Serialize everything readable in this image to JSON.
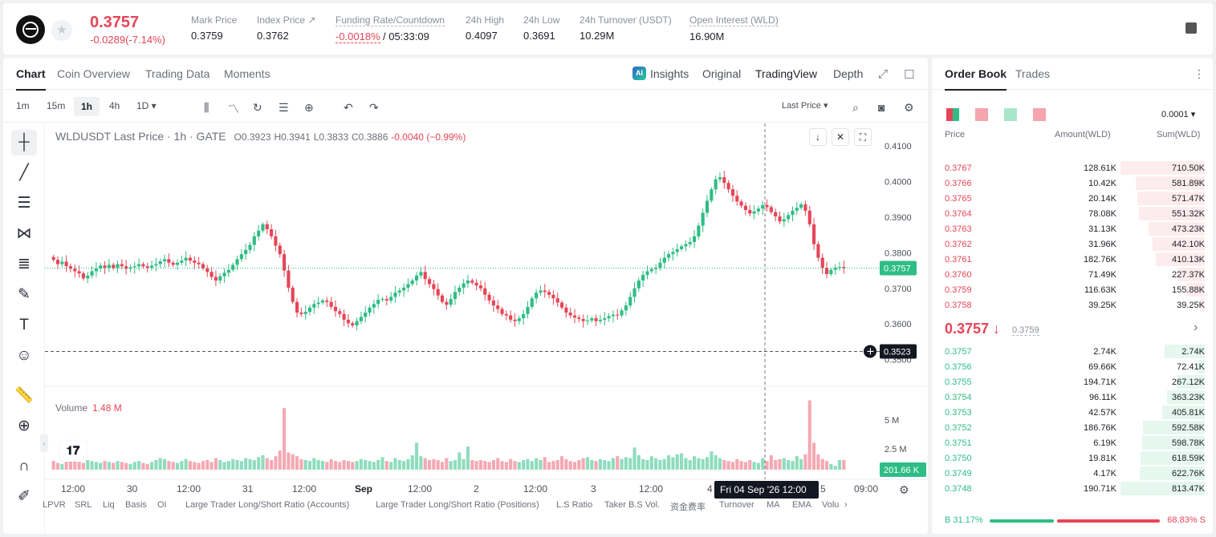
{
  "header": {
    "last_price": "0.3757",
    "change": "-0.0289(-7.14%)",
    "stats": [
      {
        "label": "Mark Price",
        "value": "0.3759"
      },
      {
        "label": "Index Price ↗",
        "value": "0.3762"
      },
      {
        "label": "Funding Rate/Countdown",
        "value_red": "-0.0018%",
        "value": "/ 05:33:09"
      },
      {
        "label": "24h High",
        "value": "0.4097"
      },
      {
        "label": "24h Low",
        "value": "0.3691"
      },
      {
        "label": "24h Turnover (USDT)",
        "value": "10.29M"
      },
      {
        "label": "Open Interest (WLD)",
        "value": "16.90M"
      }
    ]
  },
  "chart_tabs": [
    "Chart",
    "Coin Overview",
    "Trading Data",
    "Moments"
  ],
  "view_tabs": {
    "insights": "Insights",
    "ai": "AI",
    "original": "Original",
    "tradingview": "TradingView",
    "depth": "Depth"
  },
  "timeframes": [
    "1m",
    "15m",
    "1h",
    "4h",
    "1D ▾"
  ],
  "price_type": "Last Price ▾",
  "legend": {
    "symbol": "WLDUSDT Last Price · 1h · GATE",
    "o": "O0.3923",
    "h": "H0.3941",
    "l": "L0.3833",
    "c": "C0.3886",
    "chg": "-0.0040 (−0.99%)"
  },
  "volume_legend": {
    "label": "Volume",
    "value": "1.48 M"
  },
  "crosshair_date": "Fri 04 Sep '26   12:00",
  "indicators": [
    "LPVR",
    "SRL",
    "Liq",
    "Basis",
    "OI",
    "Large Trader Long/Short Ratio (Accounts)",
    "Large Trader Long/Short Ratio (Positions)",
    "L.S Ratio",
    "Taker B.S Vol.",
    "资金费率",
    "Turnover",
    "MA",
    "EMA",
    "Volu"
  ],
  "chart_data": {
    "type": "candlestick",
    "y_ticks": [
      "0.4100",
      "0.4000",
      "0.3900",
      "0.3800",
      "0.3700",
      "0.3600",
      "0.3500"
    ],
    "ylim": [
      0.3488,
      0.4118
    ],
    "current_price": "0.3757",
    "crosshair_price": "0.3523",
    "volume_ticks": [
      "5 M",
      "2.5 M"
    ],
    "volume_current": "201.66 K",
    "x_ticks": [
      "12:00",
      "30",
      "12:00",
      "31",
      "12:00",
      "Sep",
      "12:00",
      "2",
      "12:00",
      "3",
      "12:00",
      "4",
      "5",
      "09:00"
    ],
    "closes": [
      0.378,
      0.3768,
      0.3775,
      0.3762,
      0.3755,
      0.3748,
      0.3742,
      0.3728,
      0.3736,
      0.3748,
      0.3756,
      0.3764,
      0.3758,
      0.3766,
      0.3757,
      0.3768,
      0.3762,
      0.3755,
      0.3759,
      0.3762,
      0.3768,
      0.3762,
      0.3758,
      0.3764,
      0.3768,
      0.3776,
      0.3782,
      0.3772,
      0.3766,
      0.3772,
      0.3778,
      0.3786,
      0.3778,
      0.3772,
      0.3768,
      0.3756,
      0.3746,
      0.3732,
      0.3722,
      0.3734,
      0.3744,
      0.3752,
      0.3766,
      0.3782,
      0.3796,
      0.3808,
      0.3822,
      0.3846,
      0.3862,
      0.388,
      0.3866,
      0.3846,
      0.382,
      0.3796,
      0.375,
      0.3702,
      0.3662,
      0.3632,
      0.3628,
      0.3634,
      0.3646,
      0.3656,
      0.366,
      0.3666,
      0.3662,
      0.3648,
      0.3636,
      0.3628,
      0.3612,
      0.3602,
      0.3596,
      0.3608,
      0.362,
      0.3632,
      0.3646,
      0.3656,
      0.3668,
      0.367,
      0.3666,
      0.3676,
      0.3688,
      0.3694,
      0.3702,
      0.3712,
      0.3722,
      0.3736,
      0.3746,
      0.3726,
      0.3712,
      0.3698,
      0.368,
      0.3662,
      0.3654,
      0.367,
      0.369,
      0.3702,
      0.3714,
      0.3722,
      0.3716,
      0.3708,
      0.37,
      0.3682,
      0.3666,
      0.3652,
      0.3642,
      0.3628,
      0.3624,
      0.3612,
      0.3608,
      0.3616,
      0.3628,
      0.3648,
      0.3672,
      0.3688,
      0.3694,
      0.369,
      0.3682,
      0.3672,
      0.366,
      0.3646,
      0.3632,
      0.3624,
      0.3618,
      0.3614,
      0.3608,
      0.361,
      0.3616,
      0.3608,
      0.3612,
      0.3616,
      0.3622,
      0.3626,
      0.3624,
      0.3638,
      0.3652,
      0.3676,
      0.37,
      0.3722,
      0.3738,
      0.3748,
      0.3754,
      0.3758,
      0.3772,
      0.3786,
      0.3796,
      0.3802,
      0.381,
      0.3818,
      0.3824,
      0.383,
      0.3846,
      0.3876,
      0.3912,
      0.3946,
      0.3978,
      0.4006,
      0.4012,
      0.3996,
      0.3978,
      0.396,
      0.3944,
      0.3932,
      0.392,
      0.391,
      0.3916,
      0.3924,
      0.3934,
      0.3928,
      0.3914,
      0.3902,
      0.3888,
      0.3894,
      0.3906,
      0.3918,
      0.3926,
      0.3936,
      0.3918,
      0.388,
      0.3824,
      0.3786,
      0.3758,
      0.374,
      0.3752,
      0.3758,
      0.376,
      0.3757
    ],
    "volumes_mln": [
      0.9,
      0.7,
      0.6,
      0.8,
      1.1,
      0.9,
      0.8,
      0.7,
      1.0,
      0.9,
      0.8,
      0.7,
      0.9,
      0.8,
      0.7,
      0.9,
      0.8,
      0.7,
      0.6,
      0.8,
      0.9,
      0.7,
      0.6,
      0.8,
      1.0,
      1.2,
      1.1,
      0.9,
      0.8,
      0.7,
      0.9,
      1.1,
      0.9,
      0.8,
      0.7,
      0.9,
      1.0,
      0.8,
      1.2,
      1.0,
      0.8,
      0.9,
      1.1,
      1.0,
      0.9,
      1.2,
      1.1,
      1.0,
      1.3,
      1.5,
      1.2,
      1.0,
      1.4,
      2.0,
      6.4,
      1.8,
      1.6,
      1.4,
      1.1,
      1.0,
      0.9,
      1.2,
      1.0,
      0.9,
      0.8,
      1.1,
      0.9,
      0.8,
      1.0,
      0.9,
      0.8,
      0.9,
      1.1,
      1.0,
      0.9,
      0.8,
      1.0,
      1.3,
      0.9,
      0.8,
      1.2,
      1.0,
      0.9,
      1.1,
      1.5,
      2.8,
      1.4,
      1.2,
      1.0,
      1.1,
      1.0,
      0.8,
      1.2,
      0.9,
      1.0,
      1.8,
      1.1,
      2.4,
      1.0,
      0.9,
      1.0,
      0.9,
      0.8,
      1.0,
      1.2,
      0.9,
      0.8,
      1.1,
      0.9,
      0.8,
      1.0,
      1.1,
      0.9,
      1.2,
      1.0,
      1.3,
      0.8,
      0.9,
      1.0,
      1.4,
      1.1,
      0.9,
      0.8,
      1.0,
      1.2,
      1.3,
      1.0,
      0.9,
      1.1,
      1.0,
      0.9,
      1.2,
      1.4,
      1.1,
      1.3,
      1.2,
      2.3,
      1.5,
      1.1,
      1.0,
      1.4,
      1.2,
      1.0,
      1.1,
      1.5,
      1.3,
      1.6,
      1.7,
      1.2,
      1.0,
      1.4,
      1.2,
      1.1,
      1.3,
      1.9,
      1.5,
      1.2,
      1.0,
      0.9,
      0.8,
      1.1,
      0.9,
      0.8,
      1.0,
      0.8,
      0.7,
      1.2,
      0.9,
      1.5,
      1.0,
      1.1,
      1.2,
      1.0,
      0.9,
      1.4,
      1.1,
      1.6,
      7.2,
      2.8,
      1.6,
      1.1,
      0.9,
      0.6,
      0.4
    ]
  },
  "orderbook": {
    "tabs": [
      "Order Book",
      "Trades"
    ],
    "tick": "0.0001 ▾",
    "headers": {
      "price": "Price",
      "amount": "Amount(WLD)",
      "sum": "Sum(WLD)"
    },
    "asks": [
      {
        "p": "0.3767",
        "a": "128.61K",
        "s": "710.50K",
        "w": 1.0
      },
      {
        "p": "0.3766",
        "a": "10.42K",
        "s": "581.89K",
        "w": 0.82
      },
      {
        "p": "0.3765",
        "a": "20.14K",
        "s": "571.47K",
        "w": 0.8
      },
      {
        "p": "0.3764",
        "a": "78.08K",
        "s": "551.32K",
        "w": 0.78
      },
      {
        "p": "0.3763",
        "a": "31.13K",
        "s": "473.23K",
        "w": 0.67
      },
      {
        "p": "0.3762",
        "a": "31.96K",
        "s": "442.10K",
        "w": 0.62
      },
      {
        "p": "0.3761",
        "a": "182.76K",
        "s": "410.13K",
        "w": 0.58
      },
      {
        "p": "0.3760",
        "a": "71.49K",
        "s": "227.37K",
        "w": 0.32
      },
      {
        "p": "0.3759",
        "a": "116.63K",
        "s": "155.88K",
        "w": 0.22
      },
      {
        "p": "0.3758",
        "a": "39.25K",
        "s": "39.25K",
        "w": 0.06
      }
    ],
    "mid_price": "0.3757 ↓",
    "mid_mark": "0.3759",
    "bids": [
      {
        "p": "0.3757",
        "a": "2.74K",
        "s": "2.74K",
        "w": 0.48
      },
      {
        "p": "0.3756",
        "a": "69.66K",
        "s": "72.41K",
        "w": 0.09
      },
      {
        "p": "0.3755",
        "a": "194.71K",
        "s": "267.12K",
        "w": 0.33
      },
      {
        "p": "0.3754",
        "a": "96.11K",
        "s": "363.23K",
        "w": 0.45
      },
      {
        "p": "0.3753",
        "a": "42.57K",
        "s": "405.81K",
        "w": 0.5
      },
      {
        "p": "0.3752",
        "a": "186.76K",
        "s": "592.58K",
        "w": 0.73
      },
      {
        "p": "0.3751",
        "a": "6.19K",
        "s": "598.78K",
        "w": 0.74
      },
      {
        "p": "0.3750",
        "a": "19.81K",
        "s": "618.59K",
        "w": 0.76
      },
      {
        "p": "0.3749",
        "a": "4.17K",
        "s": "622.76K",
        "w": 0.77
      },
      {
        "p": "0.3748",
        "a": "190.71K",
        "s": "813.47K",
        "w": 1.0
      }
    ],
    "buy_ratio": "B 31.17%",
    "sell_ratio": "68.83% S"
  }
}
